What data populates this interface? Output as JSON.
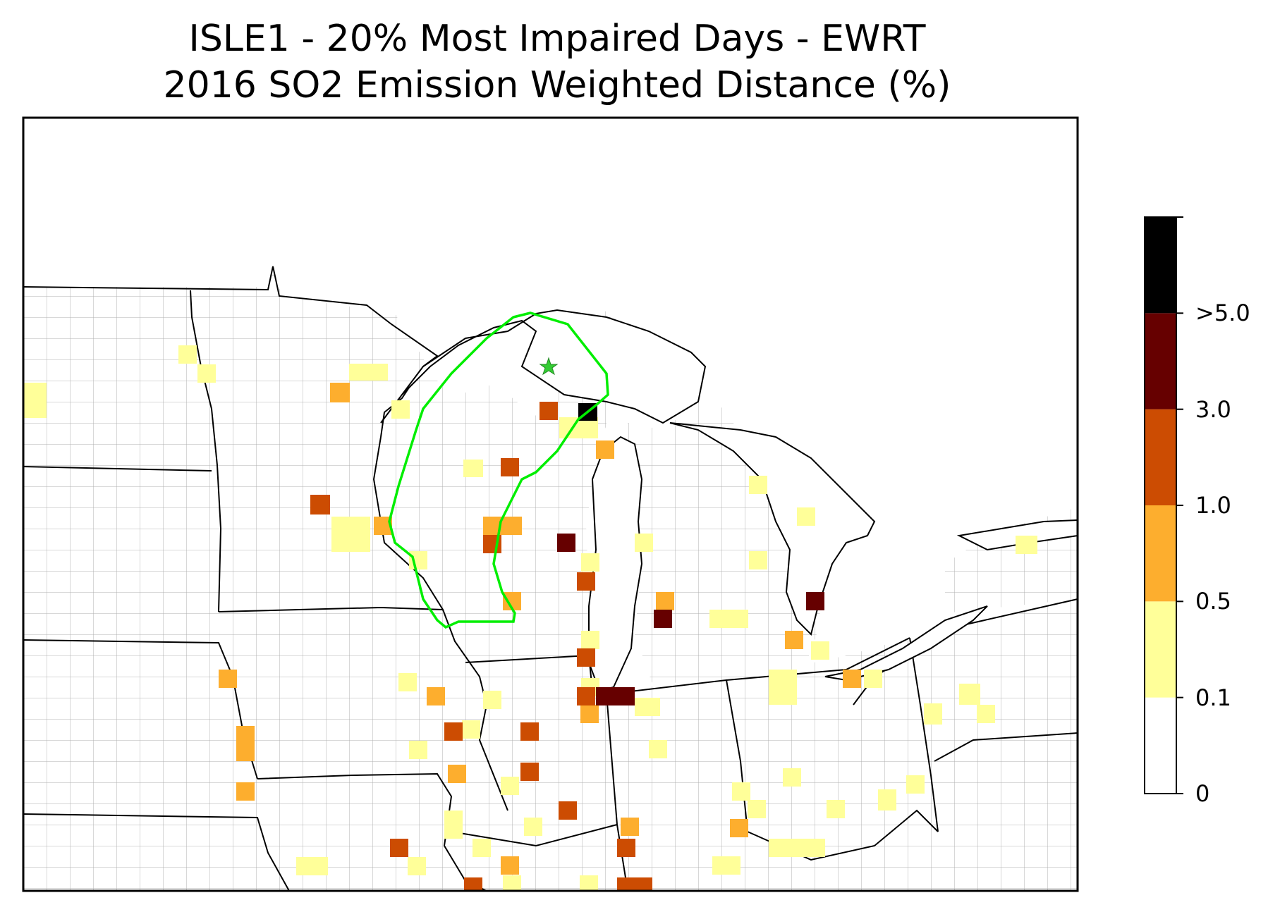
{
  "title_line1": "ISLE1 - 20% Most Impaired Days - EWRT",
  "title_line2": "2016 SO2 Emission Weighted Distance (%)",
  "colorbar": {
    "bins": [
      {
        "range": [
          0,
          0.1
        ],
        "color": "#ffffff"
      },
      {
        "range": [
          0.1,
          0.5
        ],
        "color": "#ffff99"
      },
      {
        "range": [
          0.5,
          1.0
        ],
        "color": "#fdae2e"
      },
      {
        "range": [
          1.0,
          3.0
        ],
        "color": "#cc4c02"
      },
      {
        "range": [
          3.0,
          5.0
        ],
        "color": "#660000"
      },
      {
        "range": [
          5.0,
          null
        ],
        "color": "#000000"
      }
    ],
    "tick_labels": [
      "0",
      "0.1",
      "0.5",
      "1.0",
      "3.0",
      ">5.0"
    ]
  },
  "site_marker": {
    "name": "ISLE1",
    "icon": "star-icon",
    "color": "#33cc33"
  },
  "contour_color": "#00ee00"
}
